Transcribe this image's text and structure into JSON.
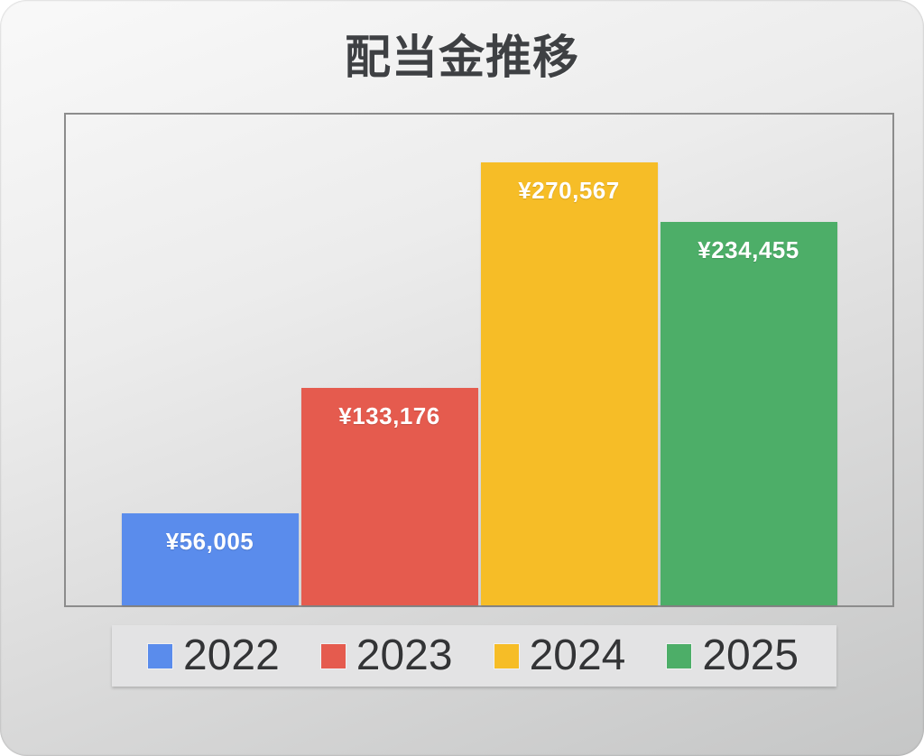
{
  "chart_data": {
    "type": "bar",
    "title": "配当金推移",
    "categories": [
      "2022",
      "2023",
      "2024",
      "2025"
    ],
    "values": [
      56005,
      133176,
      270567,
      234455
    ],
    "labels": [
      "¥56,005",
      "¥133,176",
      "¥270,567",
      "¥234,455"
    ],
    "colors": [
      "#5A8CEC",
      "#E55B4E",
      "#F6BD27",
      "#4DAE68"
    ],
    "ylim": [
      0,
      300000
    ],
    "xlabel": "",
    "ylabel": "",
    "grid": false,
    "legend_position": "bottom",
    "currency": "JPY"
  }
}
